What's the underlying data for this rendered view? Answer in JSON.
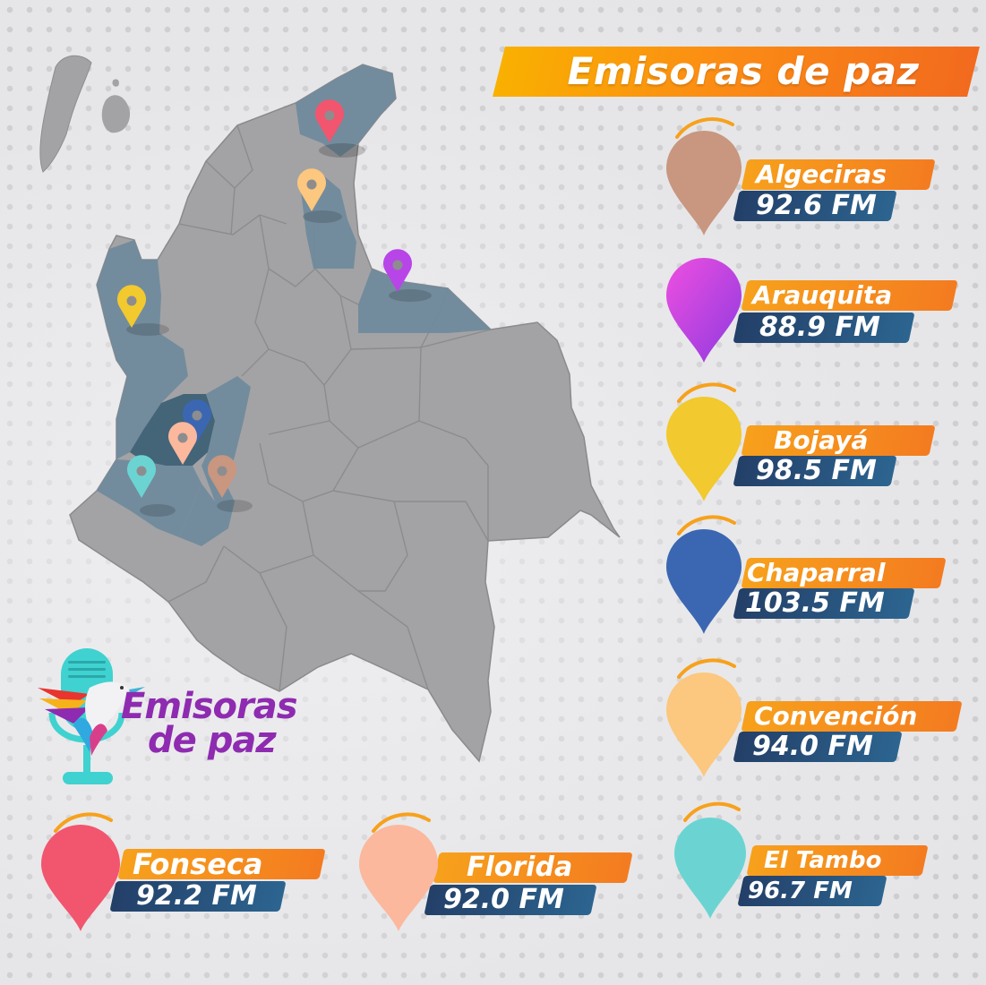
{
  "title": "Emisoras de paz",
  "logo": {
    "line1": "Emisoras",
    "line2": "de paz"
  },
  "colors": {
    "map_base": "#a3a3a5",
    "map_highlight": "#6f8a9c",
    "map_dark": "#3c5e74",
    "banner_orange": "#f47b20",
    "freq_blue": "#233f68"
  },
  "stations": [
    {
      "name": "Algeciras",
      "frequency": "92.6 FM",
      "pin_color": "#c9967f"
    },
    {
      "name": "Arauquita",
      "frequency": "88.9 FM",
      "pin_color": "#b845e8"
    },
    {
      "name": "Bojayá",
      "frequency": "98.5 FM",
      "pin_color": "#f2c92e"
    },
    {
      "name": "Chaparral",
      "frequency": "103.5 FM",
      "pin_color": "#3b67b2"
    },
    {
      "name": "Convención",
      "frequency": "94.0 FM",
      "pin_color": "#fcc77e"
    },
    {
      "name": "El Tambo",
      "frequency": "96.7 FM",
      "pin_color": "#6bd4d2"
    },
    {
      "name": "Fonseca",
      "frequency": "92.2 FM",
      "pin_color": "#f2556e"
    },
    {
      "name": "Florida",
      "frequency": "92.0 FM",
      "pin_color": "#fbb89d"
    }
  ]
}
